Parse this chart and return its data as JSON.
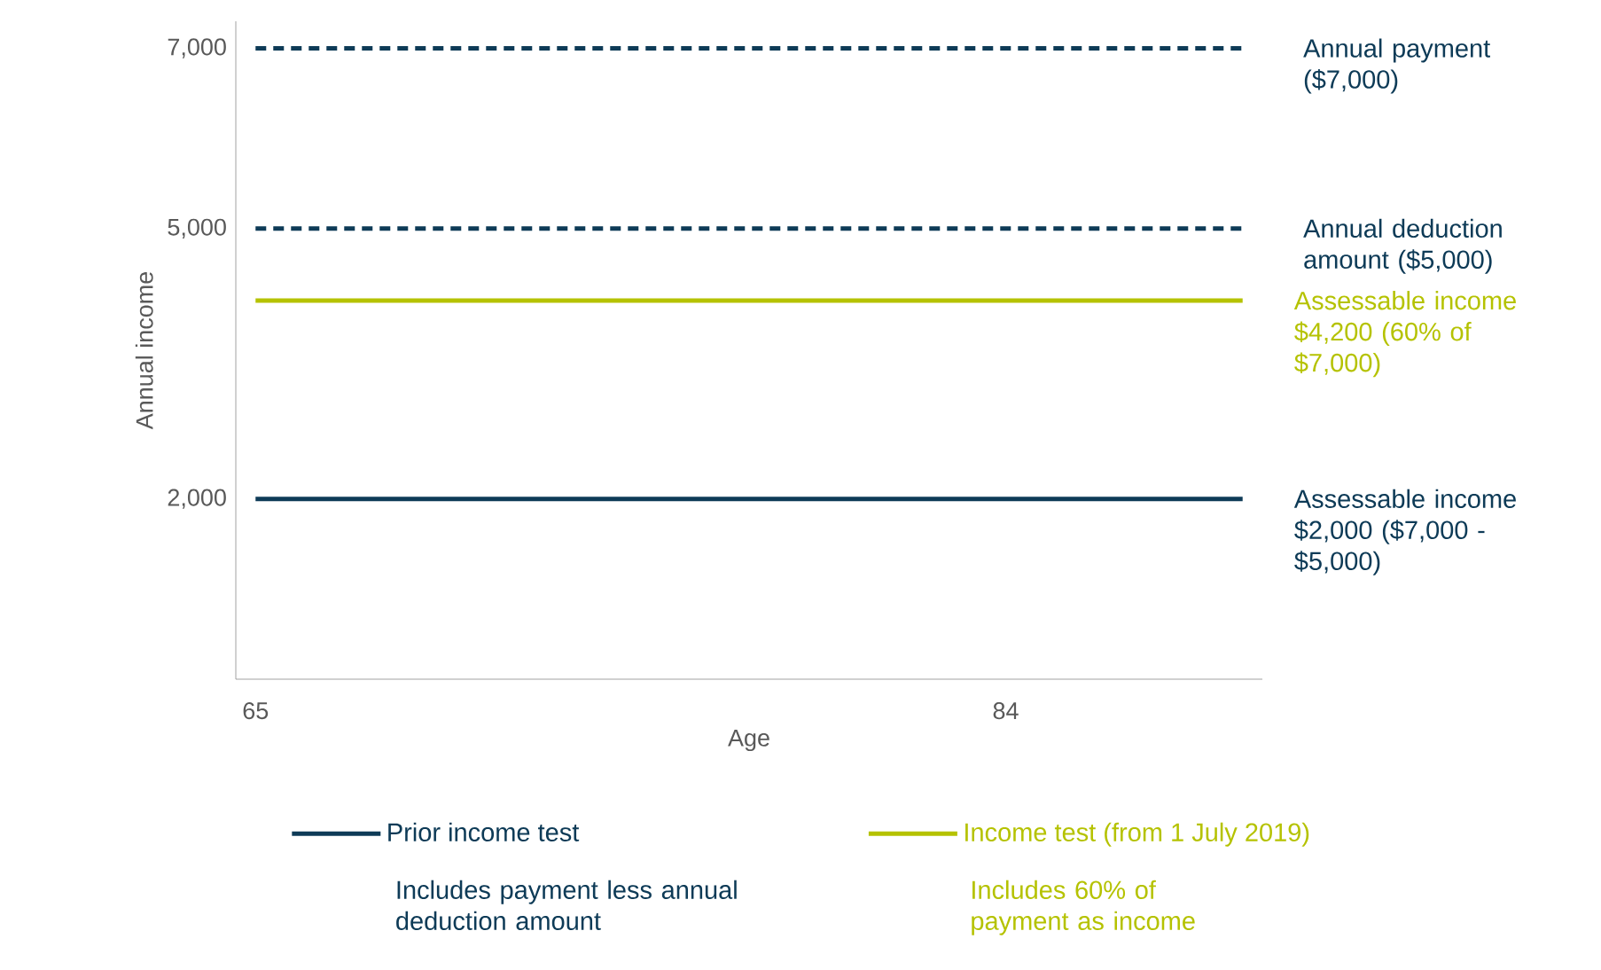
{
  "chart_data": {
    "type": "line",
    "xlabel": "Age",
    "ylabel": "Annual income",
    "x": [
      65,
      90
    ],
    "xlim": [
      64.5,
      90.5
    ],
    "ylim": [
      0,
      7300
    ],
    "xticks": [
      65,
      84
    ],
    "yticks": [
      {
        "value": 2000,
        "label": "2,000"
      },
      {
        "value": 5000,
        "label": "5,000"
      },
      {
        "value": 7000,
        "label": "7,000"
      }
    ],
    "series": [
      {
        "name": "Prior income test",
        "color": "#0e3b57",
        "values": [
          2000,
          2000
        ]
      },
      {
        "name": "Income test (from 1 July 2019)",
        "color": "#b5c200",
        "values": [
          4200,
          4200
        ]
      }
    ],
    "ref_lines": [
      {
        "axis": "y",
        "value": 7000,
        "label": "Annual payment ($7,000)",
        "color": "#0e3b57",
        "line_style": "dashed"
      },
      {
        "axis": "y",
        "value": 5000,
        "label": "Annual deduction amount ($5,000)",
        "color": "#0e3b57",
        "line_style": "dashed"
      }
    ],
    "annotations": [
      {
        "text": "Assessable income $4,200 (60% of $7,000)",
        "x": 90,
        "y": 4200
      },
      {
        "text": "Assessable income $2,000 ($7,000 - $5,000)",
        "x": 90,
        "y": 2000
      },
      "Includes payment less annual deduction amount",
      "Includes 60% of payment as income"
    ],
    "legend": "bottom",
    "line_style": "solid",
    "marker": "none",
    "grid": false
  }
}
